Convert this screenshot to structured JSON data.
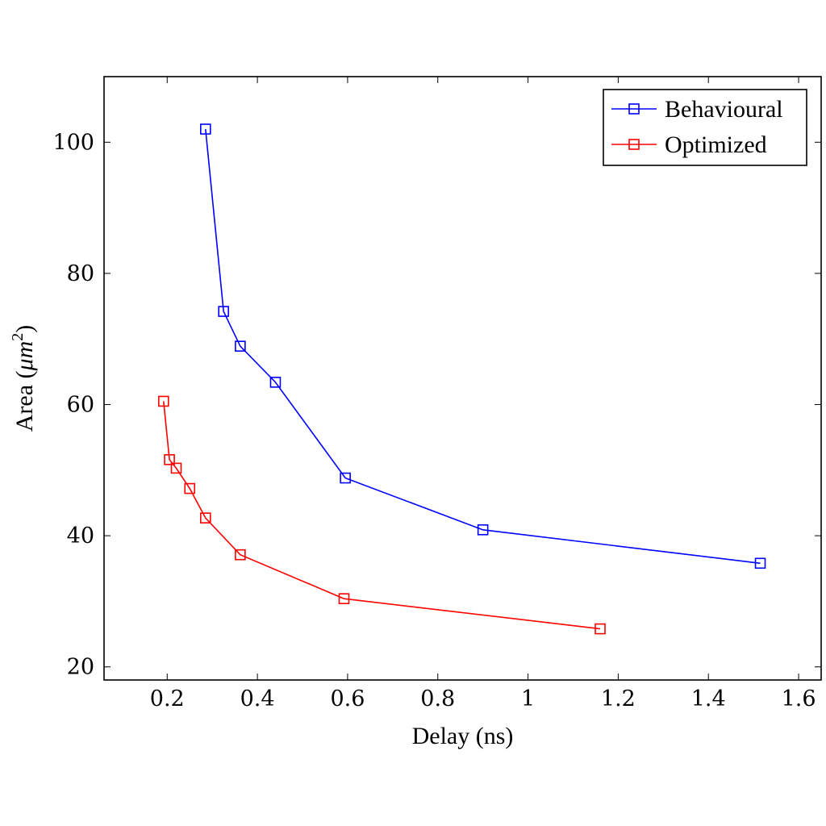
{
  "chart_data": {
    "type": "line",
    "xlabel": "Delay (ns)",
    "ylabel": "Area (",
    "ylabel_unit_base": "μm",
    "ylabel_unit_exp": "2",
    "ylabel_suffix": ")",
    "xlim": [
      0.06,
      1.65
    ],
    "ylim": [
      18,
      110
    ],
    "xticks": [
      0.2,
      0.4,
      0.6,
      0.8,
      1.0,
      1.2,
      1.4,
      1.6
    ],
    "xtick_labels": [
      "0.2",
      "0.4",
      "0.6",
      "0.8",
      "1",
      "1.2",
      "1.4",
      "1.6"
    ],
    "yticks": [
      20,
      40,
      60,
      80,
      100
    ],
    "ytick_labels": [
      "20",
      "40",
      "60",
      "80",
      "100"
    ],
    "grid": false,
    "legend_position": "top-right",
    "marker": "square",
    "series": [
      {
        "name": "Behavioural",
        "color": "#0000ff",
        "x": [
          0.285,
          0.325,
          0.362,
          0.44,
          0.595,
          0.9,
          1.515
        ],
        "y": [
          102,
          74.2,
          68.9,
          63.4,
          48.8,
          40.9,
          35.8
        ]
      },
      {
        "name": "Optimized",
        "color": "#ff0000",
        "x": [
          0.192,
          0.205,
          0.22,
          0.25,
          0.285,
          0.362,
          0.592,
          1.16
        ],
        "y": [
          60.5,
          51.6,
          50.3,
          47.2,
          42.7,
          37.1,
          30.4,
          25.8
        ]
      }
    ]
  }
}
